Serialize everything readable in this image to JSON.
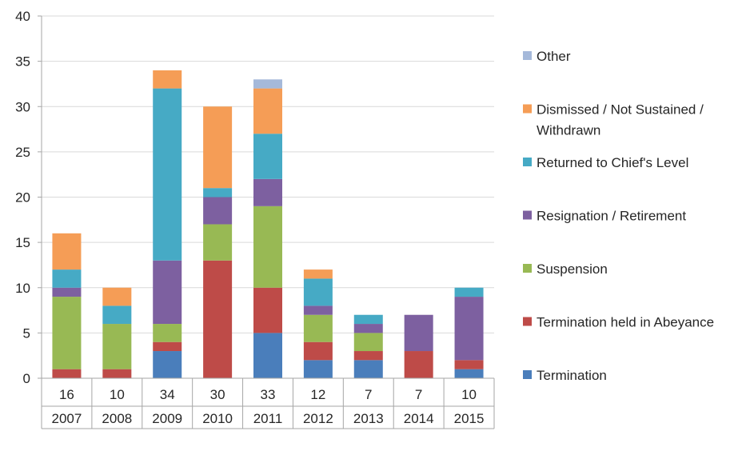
{
  "chart_data": {
    "type": "bar",
    "stacked": true,
    "categories": [
      "2007",
      "2008",
      "2009",
      "2010",
      "2011",
      "2012",
      "2013",
      "2014",
      "2015"
    ],
    "totals": [
      "16",
      "10",
      "34",
      "30",
      "33",
      "12",
      "7",
      "7",
      "10"
    ],
    "ylim": [
      0,
      40
    ],
    "yticks": [
      "0",
      "5",
      "10",
      "15",
      "20",
      "25",
      "30",
      "35",
      "40"
    ],
    "grid": true,
    "legend_position": "right",
    "series": [
      {
        "name": "Termination",
        "color": "#4a7ebb",
        "values": [
          0,
          0,
          3,
          0,
          5,
          2,
          2,
          0,
          1
        ]
      },
      {
        "name": "Termination held in Abeyance",
        "color": "#be4b48",
        "values": [
          1,
          1,
          1,
          13,
          5,
          2,
          1,
          3,
          1
        ]
      },
      {
        "name": "Suspension",
        "color": "#98b954",
        "values": [
          8,
          5,
          2,
          4,
          9,
          3,
          2,
          0,
          0
        ]
      },
      {
        "name": "Resignation / Retirement",
        "color": "#7d60a0",
        "values": [
          1,
          0,
          7,
          3,
          3,
          1,
          1,
          4,
          7
        ]
      },
      {
        "name": "Returned to Chief's Level",
        "color": "#46aac5",
        "values": [
          2,
          2,
          19,
          1,
          5,
          3,
          1,
          0,
          1
        ]
      },
      {
        "name": "Dismissed / Not Sustained / Withdrawn",
        "color": "#f59d56",
        "values": [
          4,
          2,
          2,
          9,
          5,
          1,
          0,
          0,
          0
        ]
      },
      {
        "name": "Other",
        "color": "#a5b9da",
        "values": [
          0,
          0,
          0,
          0,
          1,
          0,
          0,
          0,
          0
        ]
      }
    ],
    "legend_order": [
      "Other",
      "Dismissed / Not Sustained / Withdrawn",
      "Returned to Chief's Level",
      "Resignation / Retirement",
      "Suspension",
      "Termination held in Abeyance",
      "Termination"
    ],
    "legend_lines": {
      "Dismissed / Not Sustained / Withdrawn": [
        "Dismissed / Not Sustained /",
        "Withdrawn"
      ]
    }
  }
}
